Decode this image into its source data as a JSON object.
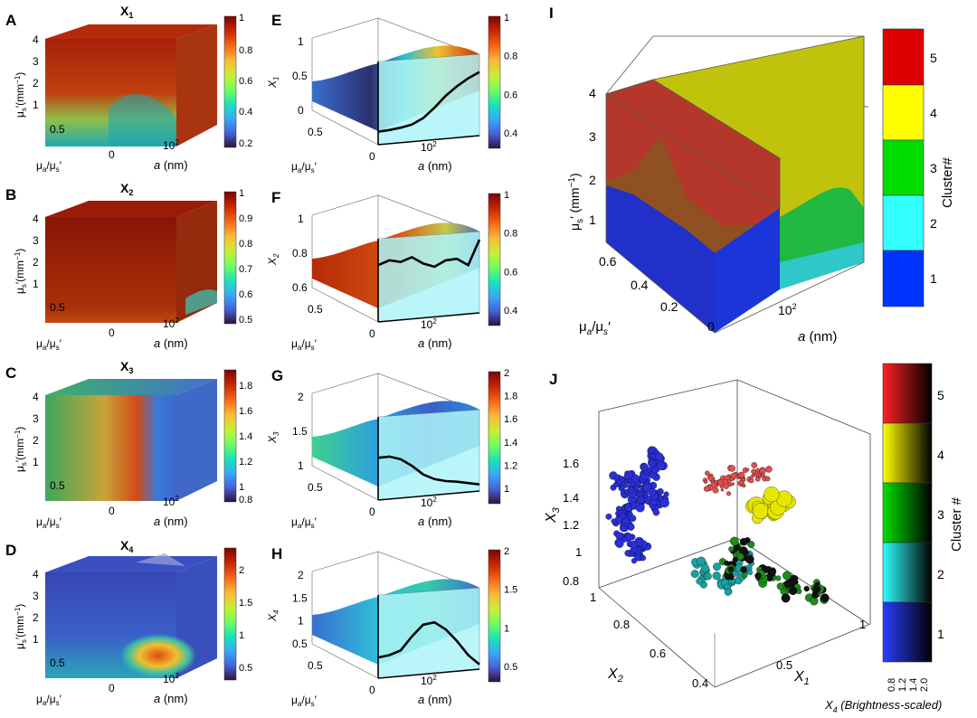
{
  "panels": {
    "A": {
      "letter": "A",
      "title_main": "X",
      "title_sub": "1",
      "ylab": "μ",
      "ylab_sub": "s",
      "ylab_rest": "′(mm",
      "ylab_sup": "−1",
      "ylab_close": ")",
      "yticks": [
        "4",
        "3",
        "2",
        "1"
      ],
      "tick_05": "0.5",
      "tick_0": "0",
      "xtick": "10",
      "xtick_sup": "2",
      "xlab_a": "a",
      "xlab_nm": " (nm)",
      "depth_mu": "μ",
      "depth_a": "a",
      "depth_slash": "/μ",
      "depth_s": "s",
      "depth_prime": "′",
      "cb_ticks": [
        "1",
        "0.8",
        "0.6",
        "0.4",
        "0.2"
      ]
    },
    "B": {
      "letter": "B",
      "title_main": "X",
      "title_sub": "2",
      "ylab": "μ",
      "ylab_sub": "s",
      "ylab_rest": "′(mm",
      "ylab_sup": "−1",
      "ylab_close": ")",
      "yticks": [
        "4",
        "3",
        "2",
        "1"
      ],
      "tick_05": "0.5",
      "tick_0": "0",
      "xtick": "10",
      "xtick_sup": "2",
      "xlab_a": "a",
      "xlab_nm": " (nm)",
      "depth_mu": "μ",
      "depth_a": "a",
      "depth_slash": "/μ",
      "depth_s": "s",
      "depth_prime": "′",
      "cb_ticks": [
        "1",
        "0.9",
        "0.8",
        "0.7",
        "0.6",
        "0.5"
      ]
    },
    "C": {
      "letter": "C",
      "title_main": "X",
      "title_sub": "3",
      "ylab": "μ",
      "ylab_sub": "s",
      "ylab_rest": "′(mm",
      "ylab_sup": "−1",
      "ylab_close": ")",
      "yticks": [
        "4",
        "3",
        "2",
        "1"
      ],
      "tick_05": "0.5",
      "tick_0": "0",
      "xtick": "10",
      "xtick_sup": "2",
      "xlab_a": "a",
      "xlab_nm": " (nm)",
      "depth_mu": "μ",
      "depth_a": "a",
      "depth_slash": "/μ",
      "depth_s": "s",
      "depth_prime": "′",
      "cb_ticks": [
        "1.8",
        "1.6",
        "1.4",
        "1.2",
        "1",
        "0.8"
      ]
    },
    "D": {
      "letter": "D",
      "title_main": "X",
      "title_sub": "4",
      "ylab": "μ",
      "ylab_sub": "s",
      "ylab_rest": "′(mm",
      "ylab_sup": "−1",
      "ylab_close": ")",
      "yticks": [
        "4",
        "3",
        "2",
        "1"
      ],
      "tick_05": "0.5",
      "tick_0": "0",
      "xtick": "10",
      "xtick_sup": "2",
      "xlab_a": "a",
      "xlab_nm": " (nm)",
      "depth_mu": "μ",
      "depth_a": "a",
      "depth_slash": "/μ",
      "depth_s": "s",
      "depth_prime": "′",
      "cb_ticks": [
        "2",
        "1.5",
        "1",
        "0.5"
      ]
    },
    "E": {
      "letter": "E",
      "zlab": "X",
      "zlab_sub": "1",
      "zticks": [
        "1",
        "0.5",
        "0"
      ],
      "tick_05": "0.5",
      "tick_0": "0",
      "xtick": "10",
      "xtick_sup": "2",
      "xlab_a": "a",
      "xlab_nm": " (nm)",
      "depth_mu": "μ",
      "depth_a": "a",
      "depth_slash": "/μ",
      "depth_s": "s",
      "depth_prime": "′",
      "cb_ticks": [
        "1",
        "0.8",
        "0.6",
        "0.4"
      ]
    },
    "F": {
      "letter": "F",
      "zlab": "X",
      "zlab_sub": "2",
      "zticks": [
        "1",
        "0.8",
        "0.6"
      ],
      "tick_05": "0.5",
      "tick_0": "0",
      "xtick": "10",
      "xtick_sup": "2",
      "xlab_a": "a",
      "xlab_nm": " (nm)",
      "depth_mu": "μ",
      "depth_a": "a",
      "depth_slash": "/μ",
      "depth_s": "s",
      "depth_prime": "′",
      "cb_ticks": [
        "1",
        "0.8",
        "0.6",
        "0.4"
      ]
    },
    "G": {
      "letter": "G",
      "zlab": "X",
      "zlab_sub": "3",
      "zticks": [
        "2",
        "1.5",
        "1"
      ],
      "tick_05": "0.5",
      "tick_0": "0",
      "xtick": "10",
      "xtick_sup": "2",
      "xlab_a": "a",
      "xlab_nm": " (nm)",
      "depth_mu": "μ",
      "depth_a": "a",
      "depth_slash": "/μ",
      "depth_s": "s",
      "depth_prime": "′",
      "cb_ticks": [
        "2",
        "1.8",
        "1.6",
        "1.4",
        "1.2",
        "1"
      ]
    },
    "H": {
      "letter": "H",
      "zlab": "X",
      "zlab_sub": "4",
      "zticks": [
        "2",
        "1.5",
        "1",
        "0.5"
      ],
      "tick_05": "0.5",
      "tick_0": "0",
      "xtick": "10",
      "xtick_sup": "2",
      "xlab_a": "a",
      "xlab_nm": " (nm)",
      "depth_mu": "μ",
      "depth_a": "a",
      "depth_slash": "/μ",
      "depth_s": "s",
      "depth_prime": "′",
      "cb_ticks": [
        "2",
        "1.5",
        "1",
        "0.5"
      ]
    },
    "I": {
      "letter": "I",
      "ylab": "μ",
      "ylab_sub": "s",
      "ylab_rest": "′ (mm",
      "ylab_sup": "−1",
      "ylab_close": ")",
      "yticks": [
        "4",
        "3",
        "2",
        "1"
      ],
      "depth_ticks": [
        "0.6",
        "0.4",
        "0.2",
        "0"
      ],
      "xtick": "10",
      "xtick_sup": "2",
      "xlab_a": "a",
      "xlab_nm": " (nm)",
      "depth_mu": "μ",
      "depth_a": "a",
      "depth_slash": "/μ",
      "depth_s": "s",
      "depth_prime": "′",
      "cb_ticks": [
        "5",
        "4",
        "3",
        "2",
        "1"
      ],
      "cb_label": "Cluster#"
    },
    "J": {
      "letter": "J",
      "zlab": "X",
      "zlab_sub": "3",
      "zticks": [
        "1.6",
        "1.4",
        "1.2",
        "1",
        "0.8"
      ],
      "x2_ticks": [
        "1",
        "0.8",
        "0.6",
        "0.4"
      ],
      "x1_ticks": [
        "1",
        "0.5"
      ],
      "x2lab": "X",
      "x2lab_sub": "2",
      "x1lab": "X",
      "x1lab_sub": "1",
      "cb_ticks": [
        "5",
        "4",
        "3",
        "2",
        "1"
      ],
      "cb_label": "Cluster #",
      "cb_bottom_ticks": [
        "0.8",
        "1.2",
        "1.4",
        "2.0"
      ],
      "x4lab": "X",
      "x4lab_sub": "4",
      "x4lab_rest": " (Brightness-scaled)"
    }
  },
  "colors": {
    "jet": [
      "#30123b",
      "#4662d7",
      "#36aaf9",
      "#1ae4b6",
      "#72fe5e",
      "#c8ef34",
      "#faba39",
      "#f66b19",
      "#ca2a04",
      "#7a0403"
    ],
    "cluster": [
      "#0033ff",
      "#33ffff",
      "#00dd00",
      "#ffff00",
      "#ff0000"
    ]
  },
  "chart_data": [
    {
      "panel": "E",
      "type": "surface",
      "x_label": "a (nm)",
      "y_label": "μa/μs′",
      "z_label": "X1",
      "zlim": [
        0,
        1
      ],
      "front_curve": [
        0.05,
        0.07,
        0.1,
        0.14,
        0.22,
        0.35,
        0.5,
        0.62,
        0.72,
        0.8
      ]
    },
    {
      "panel": "F",
      "type": "surface",
      "x_label": "a (nm)",
      "y_label": "μa/μs′",
      "z_label": "X2",
      "zlim": [
        0.5,
        1
      ],
      "front_curve": [
        0.8,
        0.83,
        0.82,
        0.85,
        0.81,
        0.79,
        0.83,
        0.84,
        0.8,
        0.96
      ]
    },
    {
      "panel": "G",
      "type": "surface",
      "x_label": "a (nm)",
      "y_label": "μa/μs′",
      "z_label": "X3",
      "zlim": [
        0.8,
        2
      ],
      "front_curve": [
        1.3,
        1.32,
        1.28,
        1.18,
        1.05,
        0.98,
        0.95,
        0.94,
        0.92,
        0.9
      ]
    },
    {
      "panel": "H",
      "type": "surface",
      "x_label": "a (nm)",
      "y_label": "μa/μs′",
      "z_label": "X4",
      "zlim": [
        0.3,
        2
      ],
      "front_curve": [
        0.55,
        0.6,
        0.7,
        1.0,
        1.25,
        1.3,
        1.15,
        0.9,
        0.6,
        0.4
      ]
    },
    {
      "panel": "J",
      "type": "scatter3d",
      "x_label": "X1",
      "y_label": "X2",
      "z_label": "X3",
      "series": [
        {
          "cluster": 1,
          "points": [
            [
              0.45,
              0.95,
              1.2
            ],
            [
              0.48,
              0.92,
              1.3
            ],
            [
              0.5,
              0.9,
              1.4
            ],
            [
              0.52,
              0.88,
              1.5
            ],
            [
              0.46,
              0.97,
              1.1
            ],
            [
              0.5,
              0.93,
              1.0
            ],
            [
              0.55,
              0.9,
              1.25
            ],
            [
              0.47,
              0.96,
              1.35
            ]
          ]
        },
        {
          "cluster": 2,
          "points": [
            [
              0.7,
              0.85,
              0.85
            ],
            [
              0.75,
              0.8,
              0.82
            ],
            [
              0.8,
              0.78,
              0.9
            ]
          ]
        },
        {
          "cluster": 3,
          "points": [
            [
              0.7,
              0.7,
              1.0
            ],
            [
              0.8,
              0.65,
              0.95
            ],
            [
              0.85,
              0.6,
              0.9
            ],
            [
              0.9,
              0.55,
              0.88
            ],
            [
              0.75,
              0.72,
              1.05
            ]
          ]
        },
        {
          "cluster": 4,
          "points": [
            [
              0.75,
              0.6,
              1.35
            ],
            [
              0.78,
              0.58,
              1.4
            ]
          ]
        },
        {
          "cluster": 5,
          "points": [
            [
              0.6,
              0.6,
              1.6
            ],
            [
              0.62,
              0.55,
              1.65
            ],
            [
              0.65,
              0.5,
              1.7
            ],
            [
              0.58,
              0.65,
              1.55
            ]
          ]
        }
      ]
    }
  ]
}
